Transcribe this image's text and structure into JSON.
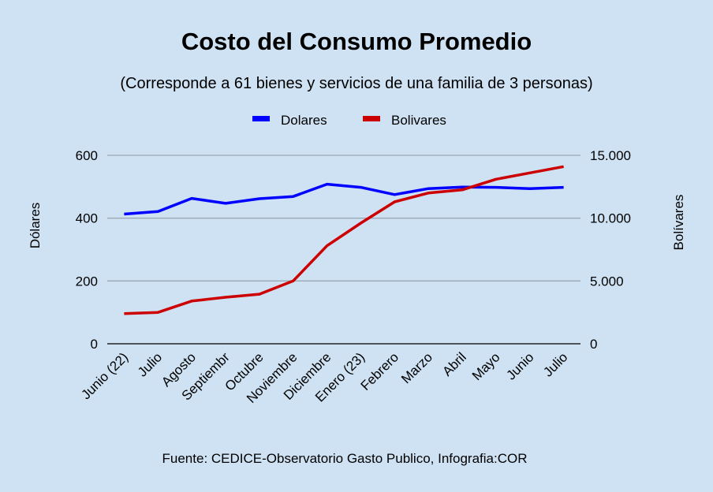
{
  "chart_data": {
    "type": "line",
    "title": "Costo del Consumo Promedio",
    "subtitle": "(Corresponde a 61 bienes y servicios de una familia de 3 personas)",
    "footer": "Fuente: CEDICE-Observatorio Gasto Publico, Infografia:COR",
    "categories": [
      "Junio (22)",
      "Julio",
      "Agosto",
      "Septiembr",
      "Octubre",
      "Noviembre",
      "Diciembre",
      "Enero (23)",
      "Febrero",
      "Marzo",
      "Abril",
      "Mayo",
      "Junio",
      "Julio"
    ],
    "series": [
      {
        "name": "Dolares",
        "axis": "left",
        "color": "#0000ff",
        "values": [
          413,
          421,
          463,
          447,
          462,
          469,
          508,
          498,
          475,
          494,
          499,
          498,
          494,
          498
        ]
      },
      {
        "name": "Bolivares",
        "axis": "right",
        "color": "#cc0000",
        "values": [
          2400,
          2500,
          3400,
          3700,
          3950,
          5000,
          7800,
          9600,
          11300,
          12000,
          12250,
          13100,
          13600,
          14100
        ]
      }
    ],
    "y_left": {
      "label": "Dólares",
      "ylim": [
        0,
        600
      ],
      "ticks": [
        0,
        200,
        400,
        600
      ],
      "tick_labels": [
        "0",
        "200",
        "400",
        "600"
      ]
    },
    "y_right": {
      "label": "Bolívares",
      "ylim": [
        0,
        15000
      ],
      "ticks": [
        0,
        5000,
        10000,
        15000
      ],
      "tick_labels": [
        "0",
        "5.000",
        "10.000",
        "15.000"
      ]
    },
    "xlabel": "",
    "grid": true,
    "legend_position": "top-center",
    "colors": {
      "background": "#cfe2f3",
      "gridline": "#9aa9b5",
      "baseline": "#000000"
    }
  }
}
